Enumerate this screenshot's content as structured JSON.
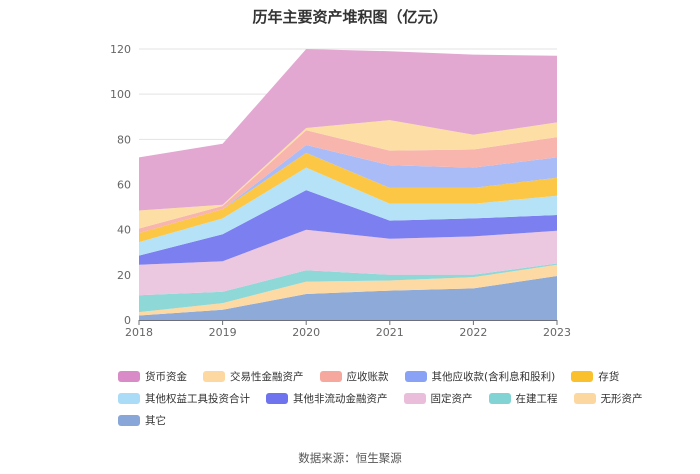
{
  "chart_data": {
    "type": "area",
    "stacked": true,
    "title": "历年主要资产堆积图（亿元）",
    "x": [
      "2018",
      "2019",
      "2020",
      "2021",
      "2022",
      "2023"
    ],
    "ylim": [
      0,
      120
    ],
    "yticks": [
      0,
      20,
      40,
      60,
      80,
      100,
      120
    ],
    "grid": true,
    "legend_position": "bottom",
    "series": [
      {
        "name": "其它",
        "color": "#8eaad8",
        "values": [
          2,
          4.5,
          11.5,
          13,
          14,
          19.5
        ]
      },
      {
        "name": "无形资产",
        "color": "#fdd9a3",
        "values": [
          1.5,
          3,
          5.5,
          4.5,
          5,
          5
        ]
      },
      {
        "name": "在建工程",
        "color": "#8ed8d8",
        "values": [
          7.5,
          5,
          5,
          2.5,
          1,
          0.5
        ]
      },
      {
        "name": "固定资产",
        "color": "#ecc7e0",
        "values": [
          13.5,
          13.5,
          18,
          16,
          17,
          14.5
        ]
      },
      {
        "name": "其他非流动金融资产",
        "color": "#7b7ff0",
        "values": [
          4,
          12,
          17.5,
          8,
          8,
          7
        ]
      },
      {
        "name": "其他权益工具投资合计",
        "color": "#b6e2f8",
        "values": [
          6,
          7,
          10,
          7.5,
          6.5,
          8.5
        ]
      },
      {
        "name": "存货",
        "color": "#fbc744",
        "values": [
          4,
          4,
          6.5,
          7,
          7,
          8
        ]
      },
      {
        "name": "其他应收款(含利息和股利)",
        "color": "#a9bcf7",
        "values": [
          0,
          0,
          3.5,
          10,
          9,
          9
        ]
      },
      {
        "name": "应收账款",
        "color": "#f8b5ae",
        "values": [
          2,
          1.5,
          6.5,
          6.5,
          8,
          9
        ]
      },
      {
        "name": "交易性金融资产",
        "color": "#fddfa6",
        "values": [
          8,
          0.5,
          1,
          13.5,
          6.5,
          6.5
        ]
      },
      {
        "name": "货币资金",
        "color": "#e2a8d2",
        "values": [
          23.5,
          27,
          35,
          30.5,
          35.5,
          29.5
        ]
      }
    ]
  },
  "legend_items": [
    {
      "name": "货币资金",
      "color": "#d98bc8"
    },
    {
      "name": "交易性金融资产",
      "color": "#fdd8a0"
    },
    {
      "name": "应收账款",
      "color": "#f6a89e"
    },
    {
      "name": "其他应收款(含利息和股利)",
      "color": "#8aa2f5"
    },
    {
      "name": "存货",
      "color": "#fbc02d"
    },
    {
      "name": "其他权益工具投资合计",
      "color": "#abdcf7"
    },
    {
      "name": "其他非流动金融资产",
      "color": "#6f73ee"
    },
    {
      "name": "固定资产",
      "color": "#eabddb"
    },
    {
      "name": "在建工程",
      "color": "#82d4d4"
    },
    {
      "name": "无形资产",
      "color": "#fdd7a0"
    },
    {
      "name": "其它",
      "color": "#89a6d8"
    }
  ],
  "source": "数据来源：恒生聚源"
}
